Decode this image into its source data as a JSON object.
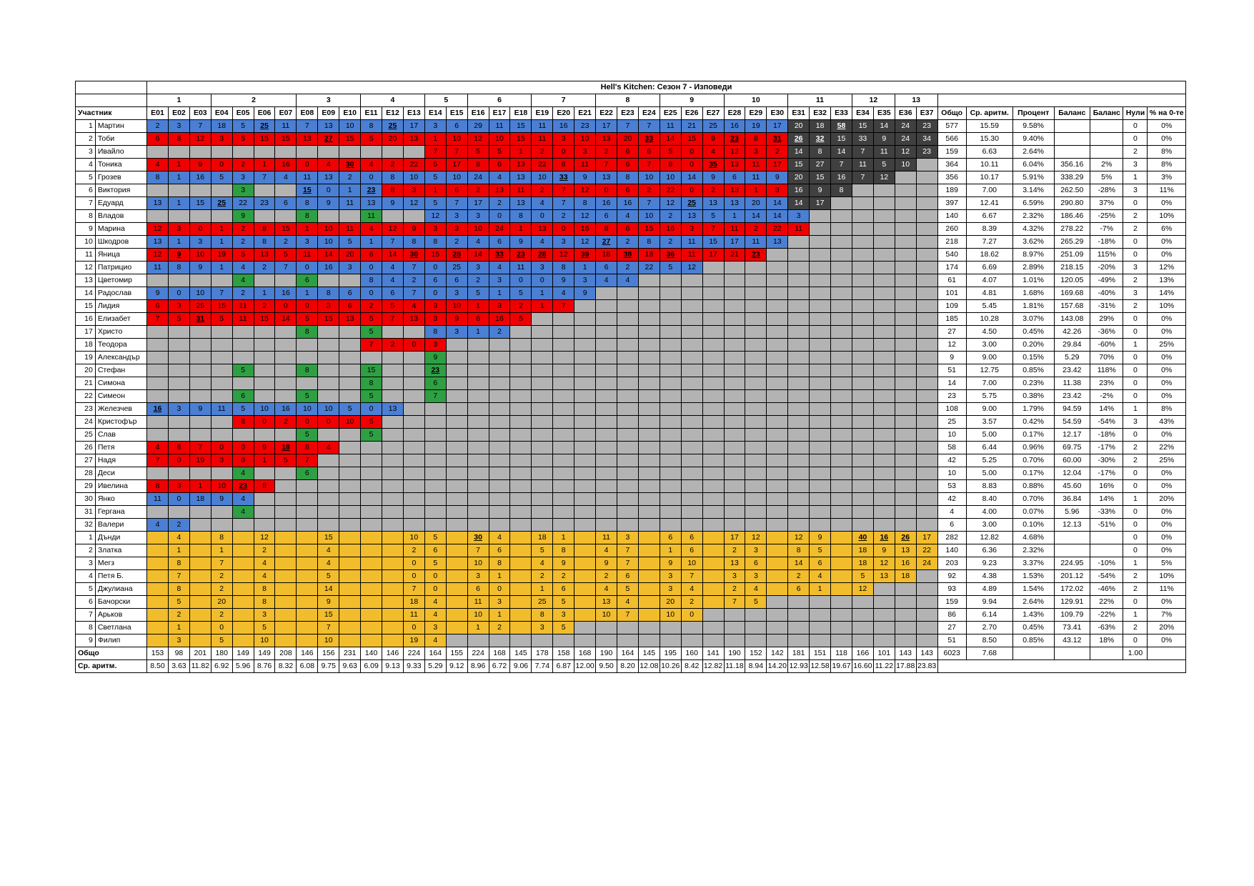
{
  "title": "Hell's Kitchen: Сезон 7 - Изповеди",
  "weeks": [
    {
      "label": "1",
      "span": 3
    },
    {
      "label": "2",
      "span": 4
    },
    {
      "label": "3",
      "span": 3
    },
    {
      "label": "4",
      "span": 3
    },
    {
      "label": "5",
      "span": 2
    },
    {
      "label": "6",
      "span": 3
    },
    {
      "label": "7",
      "span": 3
    },
    {
      "label": "8",
      "span": 3
    },
    {
      "label": "9",
      "span": 3
    },
    {
      "label": "10",
      "span": 3
    },
    {
      "label": "11",
      "span": 3
    },
    {
      "label": "12",
      "span": 2
    },
    {
      "label": "13",
      "span": 2
    }
  ],
  "headers": {
    "participant": "Участник",
    "episodes": [
      "E01",
      "E02",
      "E03",
      "E04",
      "E05",
      "E06",
      "E07",
      "E08",
      "E09",
      "E10",
      "E11",
      "E12",
      "E13",
      "E14",
      "E15",
      "E16",
      "E17",
      "E18",
      "E19",
      "E20",
      "E21",
      "E22",
      "E23",
      "E24",
      "E25",
      "E26",
      "E27",
      "E28",
      "E29",
      "E30",
      "E31",
      "E32",
      "E33",
      "E34",
      "E35",
      "E36",
      "E37"
    ],
    "stats": [
      "Общо",
      "Ср. аритм.",
      "Процент",
      "Баланс",
      "Баланс",
      "Нули",
      "% на 0-те"
    ]
  },
  "rows": [
    {
      "num": "1",
      "name": "Мартин",
      "cells": "b:2|b:3|b:7|b:18|b:5|b:*25|b:11|b:7|b:13|b:10|b:8|b:*25|b:17|b:3|b:6|b:29|b:11|b:15|b:11|b:16|b:23|b:17|b:7|b:7|b:11|b:21|b:25|b:16|b:19|b:17|k:20|k:18|k:*58|k:15|k:14|k:24|k:23",
      "stats": [
        "577",
        "15.59",
        "9.58%",
        "",
        "",
        "0",
        "0%"
      ]
    },
    {
      "num": "2",
      "name": "Тоби",
      "cells": "r:6|r:8|r:12|r:3|r:5|r:15|r:15|r:13|r:*27|r:15|r:5|r:20|r:13|r:1|r:10|r:12|r:10|r:15|r:11|r:3|r:10|r:13|r:20|r:*33|r:14|r:15|r:9|r:*23|r:8|r:*31|k:*26|k:*32|k:15|k:33|k:9|k:24|k:34",
      "stats": [
        "566",
        "15.30",
        "9.40%",
        "",
        "",
        "0",
        "0%"
      ]
    },
    {
      "num": "3",
      "name": "Ивайло",
      "cells": "g:|g:|g:|g:|g:|g:|g:|g:|g:|g:|g:|g:|g:|r:7|r:7|r:5|r:5|r:1|r:2|r:0|r:3|r:2|r:6|r:6|r:5|r:0|r:4|r:12|r:3|r:2|k:14|k:8|k:14|k:7|k:11|k:12|k:23",
      "stats": [
        "159",
        "6.63",
        "2.64%",
        "",
        "",
        "2",
        "8%"
      ]
    },
    {
      "num": "4",
      "name": "Тоника",
      "cells": "r:4|r:1|r:9|r:0|r:2|r:1|r:16|r:0|r:4|r:*30|r:4|r:2|r:22|r:5|r:17|r:8|r:6|r:13|r:22|r:8|r:11|r:7|r:6|r:7|r:8|r:0|r:*35|r:13|r:11|r:17|k:15|k:27|k:7|k:11|k:5|k:10|g:",
      "stats": [
        "364",
        "10.11",
        "6.04%",
        "356.16",
        "2%",
        "3",
        "8%"
      ]
    },
    {
      "num": "5",
      "name": "Грозев",
      "cells": "b:8|b:1|b:16|b:5|b:3|b:7|b:4|b:11|b:13|b:2|b:0|b:8|b:10|b:5|b:10|b:24|b:4|b:13|b:10|b:*33|b:9|b:13|b:8|b:10|b:10|b:14|b:9|b:6|b:11|b:9|k:20|k:15|k:16|k:7|k:12|g:|g:",
      "stats": [
        "356",
        "10.17",
        "5.91%",
        "338.29",
        "5%",
        "1",
        "3%"
      ]
    },
    {
      "num": "6",
      "name": "Виктория",
      "cells": "g:|g:|g:|g:|gr:3|g:|g:|b:*15|b:0|b:1|b:*23|r:8|r:3|r:1|r:6|r:2|r:13|r:11|r:2|r:7|r:12|r:0|r:6|r:2|r:22|r:0|r:2|r:13|r:1|r:3|k:16|k:9|k:8|g:|g:|g:|g:",
      "stats": [
        "189",
        "7.00",
        "3.14%",
        "262.50",
        "-28%",
        "3",
        "11%"
      ]
    },
    {
      "num": "7",
      "name": "Едуард",
      "cells": "b:13|b:1|b:15|b:*25|b:22|b:23|b:6|b:8|b:9|b:11|b:13|b:9|b:12|b:5|b:7|b:17|b:2|b:13|b:4|b:7|b:8|b:16|b:16|b:7|b:12|b:*25|b:13|b:13|b:20|b:14|k:14|k:17|g:|g:|g:|g:|g:",
      "stats": [
        "397",
        "12.41",
        "6.59%",
        "290.80",
        "37%",
        "0",
        "0%"
      ]
    },
    {
      "num": "8",
      "name": "Владов",
      "cells": "g:|g:|g:|g:|gr:9|g:|g:|gr:8|g:|g:|gr:11|g:|g:|b:12|b:3|b:3|b:0|b:8|b:0|b:2|b:12|b:6|b:4|b:10|b:2|b:13|b:5|b:1|b:14|b:14|b:3|g:|g:|g:|g:|g:|g:",
      "stats": [
        "140",
        "6.67",
        "2.32%",
        "186.46",
        "-25%",
        "2",
        "10%"
      ]
    },
    {
      "num": "9",
      "name": "Марина",
      "cells": "r:12|r:3|r:0|r:1|r:2|r:8|r:15|r:1|r:10|r:11|r:4|r:12|r:9|r:3|r:3|r:10|r:24|r:1|r:13|r:0|r:16|r:8|r:6|r:15|r:16|r:3|r:7|r:11|r:2|r:22|r:11|g:|g:|g:|g:|g:|g:",
      "stats": [
        "260",
        "8.39",
        "4.32%",
        "278.22",
        "-7%",
        "2",
        "6%"
      ]
    },
    {
      "num": "10",
      "name": "Шкодров",
      "cells": "b:13|b:1|b:3|b:1|b:2|b:8|b:2|b:3|b:10|b:5|b:1|b:7|b:8|b:8|b:2|b:4|b:6|b:9|b:4|b:3|b:12|b:*27|b:2|b:8|b:2|b:11|b:15|b:17|b:11|b:13|g:|g:|g:|g:|g:|g:|g:",
      "stats": [
        "218",
        "7.27",
        "3.62%",
        "265.29",
        "-18%",
        "0",
        "0%"
      ]
    },
    {
      "num": "11",
      "name": "Яница",
      "cells": "r:12|r:*9|r:10|r:19|r:5|r:13|r:5|r:11|r:14|r:20|r:6|r:14|r:*30|r:15|r:*28|r:14|r:*33|r:*23|r:*28|r:12|r:*39|r:18|r:*38|r:18|r:*36|r:11|r:17|r:21|r:*23|g:|g:|g:|g:|g:|g:|g:|g:",
      "stats": [
        "540",
        "18.62",
        "8.97%",
        "251.09",
        "115%",
        "0",
        "0%"
      ]
    },
    {
      "num": "12",
      "name": "Патрицио",
      "cells": "b:11|b:8|b:9|b:1|b:4|b:2|b:7|b:0|b:16|b:3|b:0|b:4|b:7|b:0|b:25|b:3|b:4|b:11|b:3|b:8|b:1|b:6|b:2|b:22|b:5|b:12|g:|g:|g:|g:|g:|g:|g:|g:|g:|g:|g:",
      "stats": [
        "174",
        "6.69",
        "2.89%",
        "218.15",
        "-20%",
        "3",
        "12%"
      ]
    },
    {
      "num": "13",
      "name": "Цветомир",
      "cells": "g:|g:|g:|g:|gr:4|g:|g:|gr:6|g:|g:|b:8|b:4|b:2|b:6|b:6|b:2|b:3|b:0|b:0|b:9|b:3|b:4|b:4|g:|g:|g:|g:|g:|g:|g:|g:|g:|g:|g:|g:|g:|g:",
      "stats": [
        "61",
        "4.07",
        "1.01%",
        "120.05",
        "-49%",
        "2",
        "13%"
      ]
    },
    {
      "num": "14",
      "name": "Радослав",
      "cells": "b:9|b:0|b:10|b:7|b:2|b:1|b:16|b:1|b:8|b:6|b:0|b:6|b:7|b:0|b:3|b:5|b:1|b:5|b:1|b:4|b:9|g:|g:|g:|g:|g:|g:|g:|g:|g:|g:|g:|g:|g:|g:|g:|g:",
      "stats": [
        "101",
        "4.81",
        "1.68%",
        "169.68",
        "-40%",
        "3",
        "14%"
      ]
    },
    {
      "num": "15",
      "name": "Лидия",
      "cells": "r:6|r:3|r:25|r:15|r:11|r:2|r:0|r:0|r:3|r:6|r:2|r:5|r:4|r:3|r:10|r:1|r:3|r:2|r:1|r:7|g:|g:|g:|g:|g:|g:|g:|g:|g:|g:|g:|g:|g:|g:|g:|g:|g:",
      "stats": [
        "109",
        "5.45",
        "1.81%",
        "157.68",
        "-31%",
        "2",
        "10%"
      ]
    },
    {
      "num": "16",
      "name": "Елизабет",
      "cells": "r:7|r:5|r:*31|r:5|r:11|r:15|r:14|r:5|r:15|r:13|r:5|r:7|r:13|r:3|r:9|r:6|r:16|r:5|g:|g:|g:|g:|g:|g:|g:|g:|g:|g:|g:|g:|g:|g:|g:|g:|g:|g:|g:",
      "stats": [
        "185",
        "10.28",
        "3.07%",
        "143.08",
        "29%",
        "0",
        "0%"
      ]
    },
    {
      "num": "17",
      "name": "Христо",
      "cells": "g:|g:|g:|g:|g:|g:|g:|gr:8|g:|g:|gr:5|g:|g:|b:8|b:3|b:1|b:2|g:|g:|g:|g:|g:|g:|g:|g:|g:|g:|g:|g:|g:|g:|g:|g:|g:|g:|g:|g:",
      "stats": [
        "27",
        "4.50",
        "0.45%",
        "42.26",
        "-36%",
        "0",
        "0%"
      ]
    },
    {
      "num": "18",
      "name": "Теодора",
      "cells": "g:|g:|g:|g:|g:|g:|g:|g:|g:|g:|r:7|r:2|r:0|r:3|g:|g:|g:|g:|g:|g:|g:|g:|g:|g:|g:|g:|g:|g:|g:|g:|g:|g:|g:|g:|g:|g:|g:",
      "stats": [
        "12",
        "3.00",
        "0.20%",
        "29.84",
        "-60%",
        "1",
        "25%"
      ]
    },
    {
      "num": "19",
      "name": "Александър",
      "cells": "g:|g:|g:|g:|g:|g:|g:|g:|g:|g:|g:|g:|g:|gr:9|g:|g:|g:|g:|g:|g:|g:|g:|g:|g:|g:|g:|g:|g:|g:|g:|g:|g:|g:|g:|g:|g:|g:",
      "stats": [
        "9",
        "9.00",
        "0.15%",
        "5.29",
        "70%",
        "0",
        "0%"
      ]
    },
    {
      "num": "20",
      "name": "Стефан",
      "cells": "g:|g:|g:|g:|gr:5|g:|g:|gr:8|g:|g:|gr:15|g:|g:|gr:*23|g:|g:|g:|g:|g:|g:|g:|g:|g:|g:|g:|g:|g:|g:|g:|g:|g:|g:|g:|g:|g:|g:|g:",
      "stats": [
        "51",
        "12.75",
        "0.85%",
        "23.42",
        "118%",
        "0",
        "0%"
      ]
    },
    {
      "num": "21",
      "name": "Симона",
      "cells": "g:|g:|g:|g:|g:|g:|g:|g:|g:|g:|gr:8|g:|g:|gr:6|g:|g:|g:|g:|g:|g:|g:|g:|g:|g:|g:|g:|g:|g:|g:|g:|g:|g:|g:|g:|g:|g:|g:",
      "stats": [
        "14",
        "7.00",
        "0.23%",
        "11.38",
        "23%",
        "0",
        "0%"
      ]
    },
    {
      "num": "22",
      "name": "Симеон",
      "cells": "g:|g:|g:|g:|gr:6|g:|g:|gr:5|g:|g:|gr:5|g:|g:|gr:7|g:|g:|g:|g:|g:|g:|g:|g:|g:|g:|g:|g:|g:|g:|g:|g:|g:|g:|g:|g:|g:|g:|g:",
      "stats": [
        "23",
        "5.75",
        "0.38%",
        "23.42",
        "-2%",
        "0",
        "0%"
      ]
    },
    {
      "num": "23",
      "name": "Железчев",
      "cells": "b:*16|b:3|b:9|b:11|b:5|b:10|b:16|b:10|b:10|b:5|b:0|b:13|g:|g:|g:|g:|g:|g:|g:|g:|g:|g:|g:|g:|g:|g:|g:|g:|g:|g:|g:|g:|g:|g:|g:|g:|g:",
      "stats": [
        "108",
        "9.00",
        "1.79%",
        "94.59",
        "14%",
        "1",
        "8%"
      ]
    },
    {
      "num": "24",
      "name": "Кристофър",
      "cells": "g:|g:|g:|g:|r:8|r:0|r:2|r:0|r:0|r:10|r:5|g:|g:|g:|g:|g:|g:|g:|g:|g:|g:|g:|g:|g:|g:|g:|g:|g:|g:|g:|g:|g:|g:|g:|g:|g:|g:",
      "stats": [
        "25",
        "3.57",
        "0.42%",
        "54.59",
        "-54%",
        "3",
        "43%"
      ]
    },
    {
      "num": "25",
      "name": "Слав",
      "cells": "g:|g:|g:|g:|g:|g:|g:|gr:5|g:|g:|gr:5|g:|g:|g:|g:|g:|g:|g:|g:|g:|g:|g:|g:|g:|g:|g:|g:|g:|g:|g:|g:|g:|g:|g:|g:|g:|g:",
      "stats": [
        "10",
        "5.00",
        "0.17%",
        "12.17",
        "-18%",
        "0",
        "0%"
      ]
    },
    {
      "num": "26",
      "name": "Петя",
      "cells": "r:4|r:8|r:7|r:0|r:0|r:9|r:*18|r:8|r:4|g:|g:|g:|g:|g:|g:|g:|g:|g:|g:|g:|g:|g:|g:|g:|g:|g:|g:|g:|g:|g:|g:|g:|g:|g:|g:|g:|g:",
      "stats": [
        "58",
        "6.44",
        "0.96%",
        "69.75",
        "-17%",
        "2",
        "22%"
      ]
    },
    {
      "num": "27",
      "name": "Надя",
      "cells": "r:7|r:0|r:19|r:3|r:0|r:1|r:5|r:7|g:|g:|g:|g:|g:|g:|g:|g:|g:|g:|g:|g:|g:|g:|g:|g:|g:|g:|g:|g:|g:|g:|g:|g:|g:|g:|g:|g:|g:",
      "stats": [
        "42",
        "5.25",
        "0.70%",
        "60.00",
        "-30%",
        "2",
        "25%"
      ]
    },
    {
      "num": "28",
      "name": "Деси",
      "cells": "g:|g:|g:|g:|gr:4|g:|g:|gr:6|g:|g:|g:|g:|g:|g:|g:|g:|g:|g:|g:|g:|g:|g:|g:|g:|g:|g:|g:|g:|g:|g:|g:|g:|g:|g:|g:|g:|g:",
      "stats": [
        "10",
        "5.00",
        "0.17%",
        "12.04",
        "-17%",
        "0",
        "0%"
      ]
    },
    {
      "num": "29",
      "name": "Ивелина",
      "cells": "r:8|r:3|r:1|r:10|r:*23|r:8|g:|g:|g:|g:|g:|g:|g:|g:|g:|g:|g:|g:|g:|g:|g:|g:|g:|g:|g:|g:|g:|g:|g:|g:|g:|g:|g:|g:|g:|g:|g:",
      "stats": [
        "53",
        "8.83",
        "0.88%",
        "45.60",
        "16%",
        "0",
        "0%"
      ]
    },
    {
      "num": "30",
      "name": "Янко",
      "cells": "b:11|b:0|b:18|b:9|b:4|g:|g:|g:|g:|g:|g:|g:|g:|g:|g:|g:|g:|g:|g:|g:|g:|g:|g:|g:|g:|g:|g:|g:|g:|g:|g:|g:|g:|g:|g:|g:|g:",
      "stats": [
        "42",
        "8.40",
        "0.70%",
        "36.84",
        "14%",
        "1",
        "20%"
      ]
    },
    {
      "num": "31",
      "name": "Гергана",
      "cells": "g:|g:|g:|g:|gr:4|g:|g:|g:|g:|g:|g:|g:|g:|g:|g:|g:|g:|g:|g:|g:|g:|g:|g:|g:|g:|g:|g:|g:|g:|g:|g:|g:|g:|g:|g:|g:|g:",
      "stats": [
        "4",
        "4.00",
        "0.07%",
        "5.96",
        "-33%",
        "0",
        "0%"
      ]
    },
    {
      "num": "32",
      "name": "Валери",
      "cells": "b:4|b:2|g:|g:|g:|g:|g:|g:|g:|g:|g:|g:|g:|g:|g:|g:|g:|g:|g:|g:|g:|g:|g:|g:|g:|g:|g:|g:|g:|g:|g:|g:|g:|g:|g:|g:|g:",
      "stats": [
        "6",
        "3.00",
        "0.10%",
        "12.13",
        "-51%",
        "0",
        "0%"
      ]
    },
    {
      "num": "1",
      "name": "Дънди",
      "cells": "y:|y:4|y:|y:8|y:|y:12|y:|y:|y:15|y:|y:|y:|y:10|y:5|y:|y:*30|y:4|y:|y:18|y:1|y:|y:11|y:3|y:|y:6|y:6|y:|y:17|y:12|y:|y:12|y:9|y:|y:*40|y:*16|y:*26|y:17",
      "stats": [
        "282",
        "12.82",
        "4.68%",
        "",
        "",
        "0",
        "0%"
      ]
    },
    {
      "num": "2",
      "name": "Златка",
      "cells": "y:|y:1|y:|y:1|y:|y:2|y:|y:|y:4|y:|y:|y:|y:2|y:6|y:|y:7|y:6|y:|y:5|y:8|y:|y:4|y:7|y:|y:1|y:6|y:|y:2|y:3|y:|y:8|y:5|y:|y:18|y:9|y:13|y:22",
      "stats": [
        "140",
        "6.36",
        "2.32%",
        "",
        "",
        "0",
        "0%"
      ]
    },
    {
      "num": "3",
      "name": "Мегз",
      "cells": "y:|y:8|y:|y:7|y:|y:4|y:|y:|y:4|y:|y:|y:|y:0|y:5|y:|y:10|y:8|y:|y:4|y:9|y:|y:9|y:7|y:|y:9|y:10|y:|y:13|y:6|y:|y:14|y:6|y:|y:18|y:12|y:16|y:24",
      "stats": [
        "203",
        "9.23",
        "3.37%",
        "224.95",
        "-10%",
        "1",
        "5%"
      ]
    },
    {
      "num": "4",
      "name": "Петя Б.",
      "cells": "y:|y:7|y:|y:2|y:|y:4|y:|y:|y:5|y:|y:|y:|y:0|y:0|y:|y:3|y:1|y:|y:2|y:2|y:|y:2|y:6|y:|y:3|y:7|y:|y:3|y:3|y:|y:2|y:4|y:|y:5|y:13|y:18|g:",
      "stats": [
        "92",
        "4.38",
        "1.53%",
        "201.12",
        "-54%",
        "2",
        "10%"
      ]
    },
    {
      "num": "5",
      "name": "Джулиана",
      "cells": "y:|y:8|y:|y:2|y:|y:8|y:|y:|y:14|y:|y:|y:|y:7|y:0|y:|y:6|y:0|y:|y:1|y:6|y:|y:4|y:5|y:|y:3|y:4|y:|y:2|y:4|y:|y:6|y:1|y:|y:12|g:|g:|g:",
      "stats": [
        "93",
        "4.89",
        "1.54%",
        "172.02",
        "-46%",
        "2",
        "11%"
      ]
    },
    {
      "num": "6",
      "name": "Бачорски",
      "cells": "y:|y:5|y:|y:20|y:|y:8|y:|y:|y:9|y:|y:|y:|y:18|y:4|y:|y:11|y:3|y:|y:25|y:5|y:|y:13|y:4|y:|y:20|y:2|y:|y:7|y:5|g:|g:|g:|g:|g:|g:|g:|g:",
      "stats": [
        "159",
        "9.94",
        "2.64%",
        "129.91",
        "22%",
        "0",
        "0%"
      ]
    },
    {
      "num": "7",
      "name": "Арьков",
      "cells": "y:|y:2|y:|y:2|y:|y:3|y:|y:|y:15|y:|y:|y:|y:11|y:4|y:|y:10|y:1|y:|y:8|y:3|y:|y:10|y:7|y:|y:10|y:0|g:|g:|g:|g:|g:|g:|g:|g:|g:|g:|g:",
      "stats": [
        "86",
        "6.14",
        "1.43%",
        "109.79",
        "-22%",
        "1",
        "7%"
      ]
    },
    {
      "num": "8",
      "name": "Светлана",
      "cells": "y:|y:1|y:|y:0|y:|y:5|y:|y:|y:7|y:|y:|y:|y:0|y:3|y:|y:1|y:2|y:|y:3|y:5|g:|g:|g:|g:|g:|g:|g:|g:|g:|g:|g:|g:|g:|g:|g:|g:|g:",
      "stats": [
        "27",
        "2.70",
        "0.45%",
        "73.41",
        "-63%",
        "2",
        "20%"
      ]
    },
    {
      "num": "9",
      "name": "Филип",
      "cells": "y:|y:3|y:|y:5|y:|y:10|y:|y:|y:10|y:|y:|y:|y:19|y:4|g:|g:|g:|g:|g:|g:|g:|g:|g:|g:|g:|g:|g:|g:|g:|g:|g:|g:|g:|g:|g:|g:|g:",
      "stats": [
        "51",
        "8.50",
        "0.85%",
        "43.12",
        "18%",
        "0",
        "0%"
      ]
    }
  ],
  "totals": {
    "label": "Общо",
    "values": [
      "153",
      "98",
      "201",
      "180",
      "149",
      "149",
      "208",
      "146",
      "156",
      "231",
      "140",
      "146",
      "224",
      "164",
      "155",
      "224",
      "168",
      "145",
      "178",
      "158",
      "168",
      "190",
      "164",
      "145",
      "195",
      "160",
      "141",
      "190",
      "152",
      "142",
      "181",
      "151",
      "118",
      "166",
      "101",
      "143",
      "143"
    ],
    "stats": [
      "6023",
      "7.68",
      "",
      "",
      "",
      "1.00",
      ""
    ]
  },
  "averages": {
    "label": "Ср. аритм.",
    "values": [
      "8.50",
      "3.63",
      "11.82",
      "6.92",
      "5.96",
      "8.76",
      "8.32",
      "6.08",
      "9.75",
      "9.63",
      "6.09",
      "9.13",
      "9.33",
      "5.29",
      "9.12",
      "8.96",
      "6.72",
      "9.06",
      "7.74",
      "6.87",
      "12.00",
      "9.50",
      "8.20",
      "12.08",
      "10.26",
      "8.42",
      "12.82",
      "11.18",
      "8.94",
      "14.20",
      "12.93",
      "12.58",
      "19.67",
      "16.60",
      "11.22",
      "17.88",
      "23.83"
    ]
  }
}
